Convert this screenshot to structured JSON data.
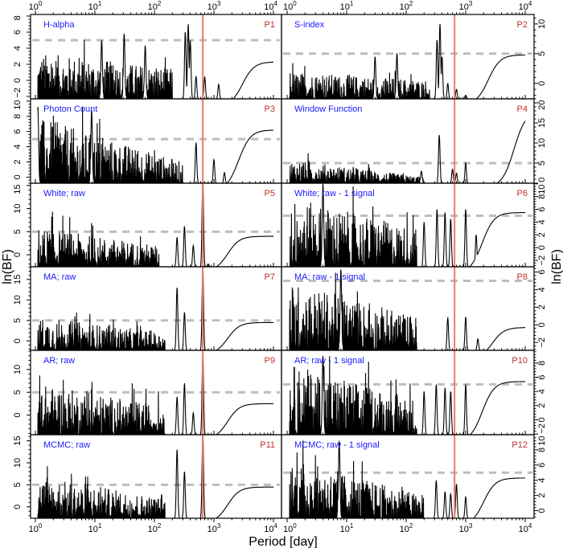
{
  "chart_data": {
    "type": "line",
    "xlabel": "Period [day]",
    "ylabel": "ln(BF)",
    "xscale": "log",
    "xlim": [
      1,
      10000
    ],
    "xticks": [
      1,
      10,
      100,
      1000,
      10000
    ],
    "xtick_labels": [
      [
        "10",
        "0"
      ],
      [
        "10",
        "1"
      ],
      [
        "10",
        "2"
      ],
      [
        "10",
        "3"
      ],
      [
        "10",
        "4"
      ]
    ],
    "marked_period": 650,
    "threshold": 5,
    "colors": {
      "title": "#1a1aff",
      "panel_id": "#c0302a",
      "marker_line": "#f07b68",
      "threshold": "#bdbdbd",
      "curve": "#000000"
    },
    "panels": [
      {
        "id": "P1",
        "title": "H-alpha",
        "ylim": [
          -2.3,
          8.2
        ],
        "yticks": [
          -2,
          0,
          2,
          4,
          6,
          8
        ],
        "noise": [
          3.5,
          1.5,
          200
        ],
        "peaks": [
          [
            13,
            5
          ],
          [
            31,
            5.8
          ],
          [
            70,
            4.3
          ],
          [
            330,
            6
          ],
          [
            370,
            7
          ],
          [
            400,
            5
          ],
          [
            500,
            0.5
          ],
          [
            700,
            0.4
          ],
          [
            1200,
            -0.5
          ]
        ],
        "tail": [
          2.3,
          3000
        ]
      },
      {
        "id": "P2",
        "title": "S-index",
        "ylim": [
          -2.6,
          11.6
        ],
        "yticks": [
          0,
          5,
          10
        ],
        "noise": [
          2,
          0.6,
          250
        ],
        "peaks": [
          [
            30,
            4.5
          ],
          [
            70,
            5
          ],
          [
            330,
            7.3
          ],
          [
            370,
            10
          ],
          [
            400,
            4.5
          ],
          [
            500,
            0
          ],
          [
            700,
            -1
          ],
          [
            1000,
            -2
          ]
        ],
        "tail": [
          4.8,
          2400
        ]
      },
      {
        "id": "P3",
        "title": "Photon Count",
        "ylim": [
          -0.8,
          10.3
        ],
        "yticks": [
          0,
          2,
          4,
          6,
          8,
          10
        ],
        "noise": [
          8,
          2,
          300
        ],
        "peaks": [
          [
            1.1,
            8.8
          ],
          [
            8.8,
            8.8
          ],
          [
            500,
            4.5
          ],
          [
            1000,
            2.3
          ],
          [
            1500,
            0.6
          ]
        ],
        "tail": [
          6.2,
          2600
        ]
      },
      {
        "id": "P4",
        "title": "Window Function",
        "ylim": [
          0,
          21
        ],
        "yticks": [
          0,
          5,
          10,
          15,
          20
        ],
        "noise": [
          6,
          1.5,
          200
        ],
        "peaks": [
          [
            180,
            3
          ],
          [
            360,
            12
          ],
          [
            600,
            3.5
          ],
          [
            700,
            2.5
          ],
          [
            1000,
            5
          ]
        ],
        "tail": [
          18,
          6500
        ]
      },
      {
        "id": "P5",
        "title": "White; raw",
        "ylim": [
          -2.6,
          15.5
        ],
        "yticks": [
          0,
          5,
          10,
          15
        ],
        "noise": [
          6,
          2,
          120
        ],
        "peaks": [
          [
            240,
            3.8
          ],
          [
            320,
            6.2
          ],
          [
            450,
            2
          ],
          [
            650,
            16.5
          ],
          [
            800,
            -2
          ]
        ],
        "tail": [
          4,
          1700
        ]
      },
      {
        "id": "P6",
        "title": "White; raw - 1 signal",
        "ylim": [
          -3,
          10.1
        ],
        "yticks": [
          -2,
          0,
          2,
          4,
          6,
          8,
          10
        ],
        "noise": [
          8,
          3,
          150
        ],
        "peaks": [
          [
            4,
            10
          ],
          [
            200,
            4
          ],
          [
            330,
            6
          ],
          [
            450,
            5.5
          ],
          [
            560,
            4.5
          ],
          [
            1000,
            6
          ],
          [
            1500,
            2
          ]
        ],
        "tail": [
          5.5,
          1900
        ]
      },
      {
        "id": "P7",
        "title": "MA; raw",
        "ylim": [
          -2.3,
          18.1
        ],
        "yticks": [
          0,
          5,
          10,
          15
        ],
        "noise": [
          6,
          2,
          150
        ],
        "peaks": [
          [
            240,
            13
          ],
          [
            320,
            7
          ],
          [
            650,
            18
          ]
        ],
        "tail": [
          4.5,
          1700
        ]
      },
      {
        "id": "P8",
        "title": "MA; raw - 1 signal",
        "ylim": [
          -2.9,
          6.6
        ],
        "yticks": [
          -2,
          0,
          2,
          4,
          6
        ],
        "noise": [
          5,
          1,
          150
        ],
        "peaks": [
          [
            8,
            6.3
          ],
          [
            500,
            0.8
          ],
          [
            1000,
            0.9
          ],
          [
            1600,
            -1.6
          ]
        ],
        "tail": [
          -0.3,
          2800
        ]
      },
      {
        "id": "P9",
        "title": "AR; raw",
        "ylim": [
          -4.3,
          14.2
        ],
        "yticks": [
          0,
          5,
          10
        ],
        "noise": [
          7,
          2,
          150
        ],
        "peaks": [
          [
            240,
            4
          ],
          [
            320,
            7
          ],
          [
            450,
            0.5
          ],
          [
            650,
            13.5
          ]
        ],
        "tail": [
          2.5,
          1700
        ]
      },
      {
        "id": "P10",
        "title": "AR; raw - 1 signal",
        "ylim": [
          -2.1,
          9.8
        ],
        "yticks": [
          -2,
          0,
          2,
          4,
          6,
          8
        ],
        "noise": [
          8,
          3,
          150
        ],
        "peaks": [
          [
            4,
            9
          ],
          [
            200,
            4
          ],
          [
            320,
            5
          ],
          [
            450,
            4.5
          ],
          [
            560,
            4
          ],
          [
            1000,
            5
          ]
        ],
        "tail": [
          5.4,
          1900
        ]
      },
      {
        "id": "P11",
        "title": "MCMC; raw",
        "ylim": [
          -2.6,
          16.4
        ],
        "yticks": [
          0,
          5,
          10,
          15
        ],
        "noise": [
          7,
          2,
          150
        ],
        "peaks": [
          [
            240,
            13
          ],
          [
            320,
            8
          ],
          [
            650,
            17
          ]
        ],
        "tail": [
          4.5,
          1700
        ]
      },
      {
        "id": "P12",
        "title": "MCMC; raw - 1 signal",
        "ylim": [
          -1,
          10
        ],
        "yticks": [
          0,
          2,
          4,
          6,
          8,
          10
        ],
        "noise": [
          7,
          2,
          200
        ],
        "peaks": [
          [
            7.5,
            9.2
          ],
          [
            320,
            4
          ],
          [
            450,
            2.5
          ],
          [
            560,
            2.2
          ],
          [
            700,
            3.5
          ],
          [
            1000,
            1.8
          ]
        ],
        "tail": [
          4.3,
          2000
        ]
      }
    ]
  }
}
